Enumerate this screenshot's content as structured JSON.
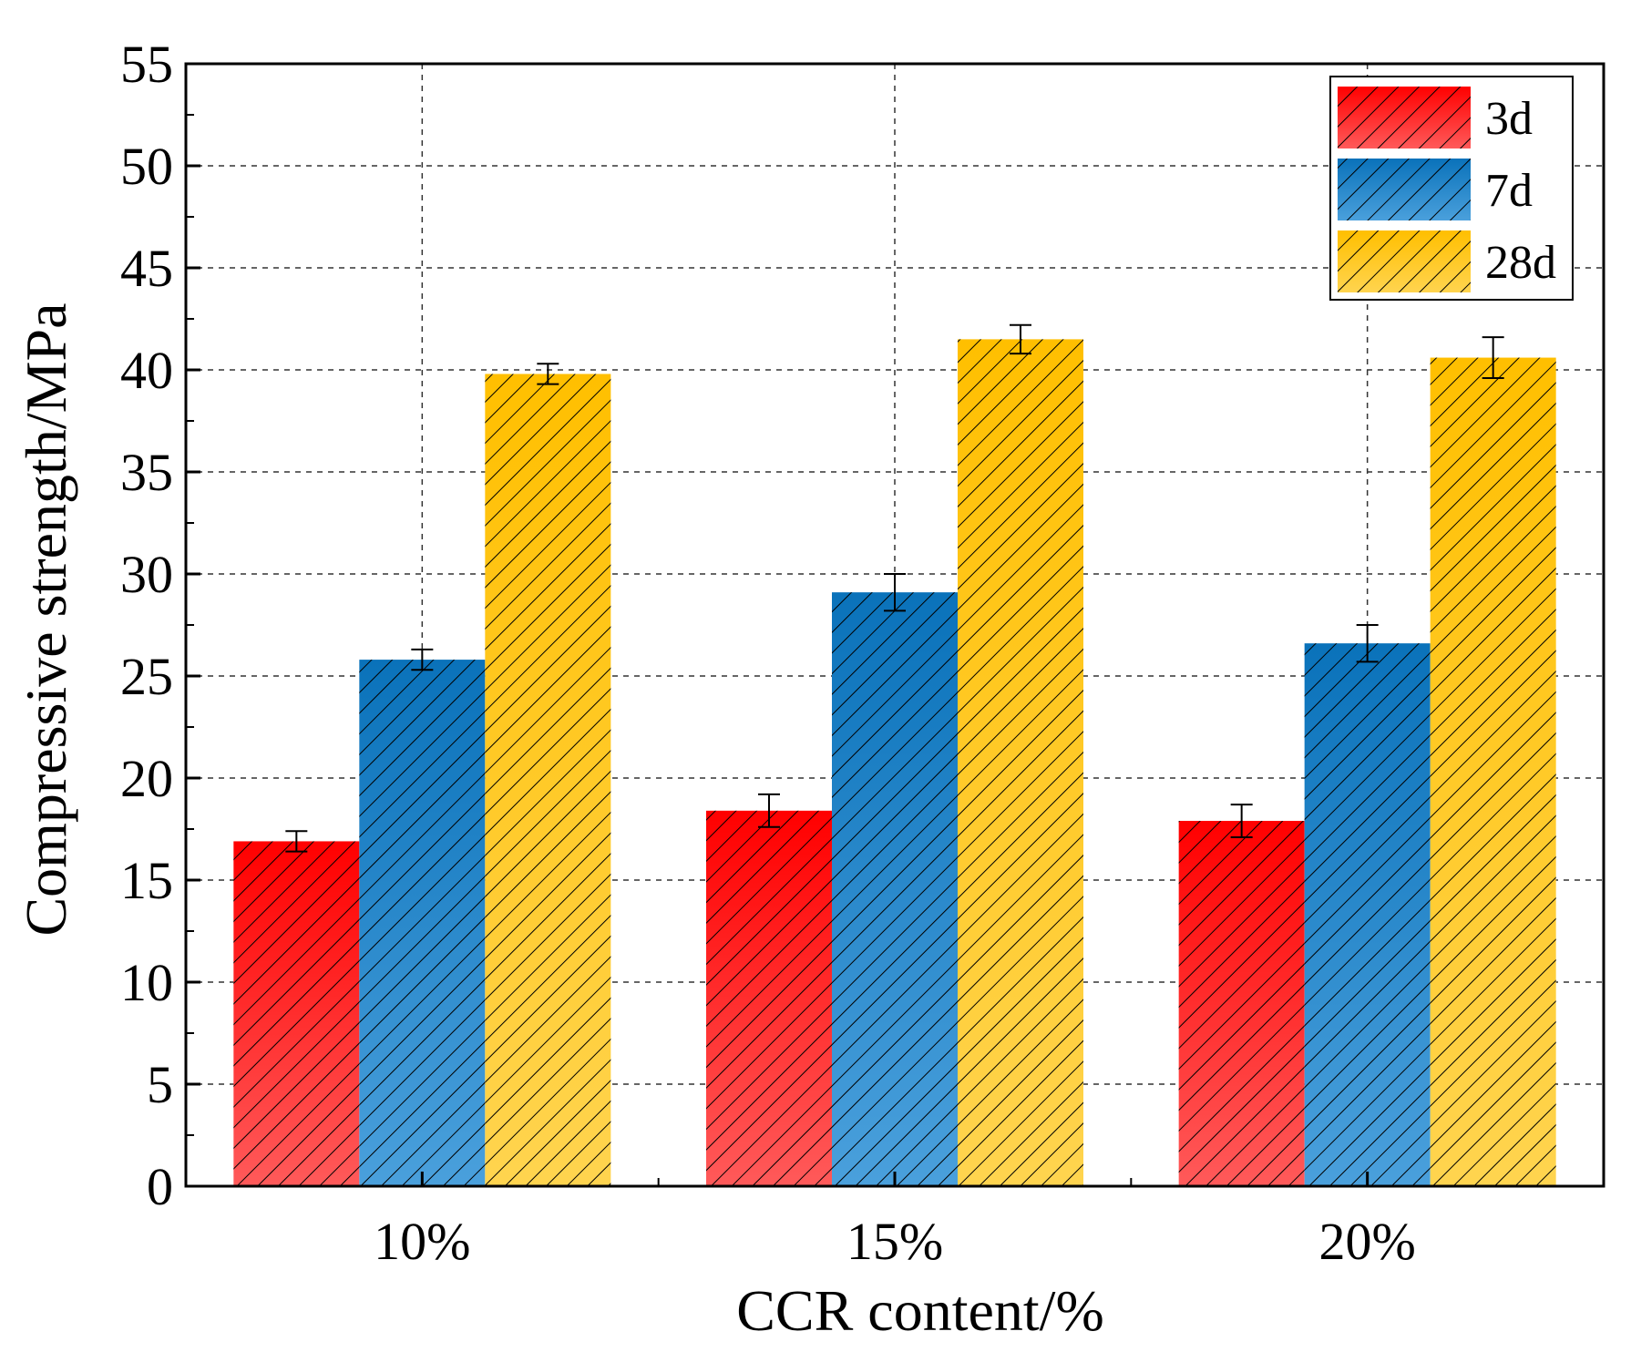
{
  "chart_data": {
    "type": "bar",
    "title": "",
    "xlabel": "CCR content/%",
    "ylabel": "Compressive strength/MPa",
    "categories": [
      "10%",
      "15%",
      "20%"
    ],
    "ylim": [
      0,
      55
    ],
    "yticks": [
      0,
      5,
      10,
      15,
      20,
      25,
      30,
      35,
      40,
      45,
      50,
      55
    ],
    "ytick_labels": [
      "0",
      "5",
      "10",
      "15",
      "20",
      "25",
      "30",
      "35",
      "40",
      "45",
      "50",
      "55"
    ],
    "grid": true,
    "legend_position": "top-right",
    "series": [
      {
        "name": "3d",
        "color": "#ff0000",
        "values": [
          16.9,
          18.4,
          17.9
        ],
        "errors": [
          0.5,
          0.8,
          0.8
        ]
      },
      {
        "name": "7d",
        "color": "#1a7abf",
        "values": [
          25.8,
          29.1,
          26.6
        ],
        "errors": [
          0.5,
          0.9,
          0.9
        ]
      },
      {
        "name": "28d",
        "color": "#ffc000",
        "values": [
          39.8,
          41.5,
          40.6
        ],
        "errors": [
          0.5,
          0.7,
          1.0
        ]
      }
    ]
  }
}
